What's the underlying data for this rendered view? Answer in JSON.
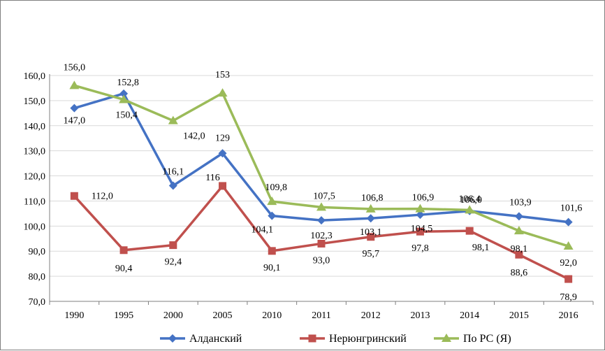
{
  "chart_data": {
    "type": "line",
    "title": "",
    "xlabel": "",
    "ylabel": "",
    "categories": [
      "1990",
      "1995",
      "2000",
      "2005",
      "2010",
      "2011",
      "2012",
      "2013",
      "2014",
      "2015",
      "2016"
    ],
    "ylim": [
      70,
      160
    ],
    "yticks": [
      "70,0",
      "80,0",
      "90,0",
      "100,0",
      "110,0",
      "120,0",
      "130,0",
      "140,0",
      "150,0",
      "160,0"
    ],
    "grid": "horizontal",
    "legend": "bottom",
    "series": [
      {
        "name": "Алданский",
        "color": "#4472c4",
        "marker": "diamond",
        "values": [
          147.0,
          152.8,
          116.1,
          129,
          104.1,
          102.3,
          103.1,
          104.5,
          106.0,
          103.9,
          101.6
        ],
        "labels": [
          "147,0",
          "152,8",
          "116,1",
          "129",
          "104,1",
          "102,3",
          "103,1",
          "104,5",
          "106,0",
          "103,9",
          "101,6"
        ]
      },
      {
        "name": "Нерюнгринский",
        "color": "#c0504d",
        "marker": "square",
        "values": [
          112.0,
          90.4,
          92.4,
          116,
          90.1,
          93.0,
          95.7,
          97.8,
          98.1,
          88.6,
          78.9
        ],
        "labels": [
          "112,0",
          "90,4",
          "92,4",
          "116",
          "90,1",
          "93,0",
          "95,7",
          "97,8",
          "98,1",
          "88,6",
          "78,9"
        ]
      },
      {
        "name": "По РС (Я)",
        "color": "#9bbb59",
        "marker": "triangle",
        "values": [
          156.0,
          150.4,
          142.0,
          153,
          109.8,
          107.5,
          106.8,
          106.9,
          106.4,
          98.1,
          92.0
        ],
        "labels": [
          "156,0",
          "150,4",
          "142,0",
          "153",
          "109,8",
          "107,5",
          "106,8",
          "106,9",
          "106,4",
          "98,1",
          "92,0"
        ]
      }
    ]
  }
}
